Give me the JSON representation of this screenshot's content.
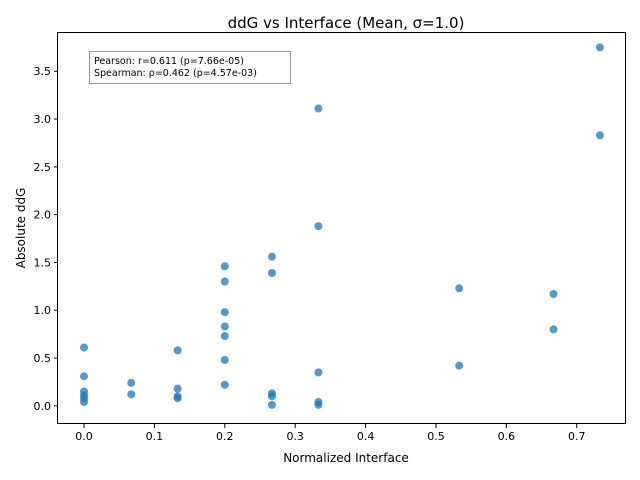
{
  "chart_data": {
    "type": "scatter",
    "title": "ddG vs Interface (Mean, σ=1.0)",
    "xlabel": "Normalized Interface",
    "ylabel": "Absolute ddG",
    "xlim": [
      -0.037,
      0.77
    ],
    "ylim": [
      -0.19,
      3.9
    ],
    "xticks": [
      0.0,
      0.1,
      0.2,
      0.3,
      0.4,
      0.5,
      0.6,
      0.7
    ],
    "xtick_labels": [
      "0.0",
      "0.1",
      "0.2",
      "0.3",
      "0.4",
      "0.5",
      "0.6",
      "0.7"
    ],
    "yticks": [
      0.0,
      0.5,
      1.0,
      1.5,
      2.0,
      2.5,
      3.0,
      3.5
    ],
    "ytick_labels": [
      "0.0",
      "0.5",
      "1.0",
      "1.5",
      "2.0",
      "2.5",
      "3.0",
      "3.5"
    ],
    "grid": false,
    "annotation": {
      "lines": [
        "Pearson: r=0.611 (p=7.66e-05)",
        "Spearman: ρ=0.462 (p=4.57e-03)"
      ],
      "placement": "top-left"
    },
    "color": "#1f77b4",
    "points": [
      {
        "x": 0.0,
        "y": 0.61
      },
      {
        "x": 0.0,
        "y": 0.31
      },
      {
        "x": 0.0,
        "y": 0.15
      },
      {
        "x": 0.0,
        "y": 0.11
      },
      {
        "x": 0.0,
        "y": 0.08
      },
      {
        "x": 0.0,
        "y": 0.04
      },
      {
        "x": 0.067,
        "y": 0.24
      },
      {
        "x": 0.067,
        "y": 0.12
      },
      {
        "x": 0.133,
        "y": 0.58
      },
      {
        "x": 0.133,
        "y": 0.18
      },
      {
        "x": 0.133,
        "y": 0.1
      },
      {
        "x": 0.133,
        "y": 0.08
      },
      {
        "x": 0.2,
        "y": 1.46
      },
      {
        "x": 0.2,
        "y": 1.3
      },
      {
        "x": 0.2,
        "y": 0.98
      },
      {
        "x": 0.2,
        "y": 0.83
      },
      {
        "x": 0.2,
        "y": 0.73
      },
      {
        "x": 0.2,
        "y": 0.48
      },
      {
        "x": 0.2,
        "y": 0.22
      },
      {
        "x": 0.267,
        "y": 1.56
      },
      {
        "x": 0.267,
        "y": 1.39
      },
      {
        "x": 0.267,
        "y": 0.13
      },
      {
        "x": 0.267,
        "y": 0.1
      },
      {
        "x": 0.267,
        "y": 0.01
      },
      {
        "x": 0.333,
        "y": 3.11
      },
      {
        "x": 0.333,
        "y": 1.88
      },
      {
        "x": 0.333,
        "y": 0.35
      },
      {
        "x": 0.333,
        "y": 0.04
      },
      {
        "x": 0.333,
        "y": 0.01
      },
      {
        "x": 0.533,
        "y": 1.23
      },
      {
        "x": 0.533,
        "y": 0.42
      },
      {
        "x": 0.667,
        "y": 1.17
      },
      {
        "x": 0.667,
        "y": 0.8
      },
      {
        "x": 0.733,
        "y": 3.75
      },
      {
        "x": 0.733,
        "y": 2.83
      }
    ]
  }
}
